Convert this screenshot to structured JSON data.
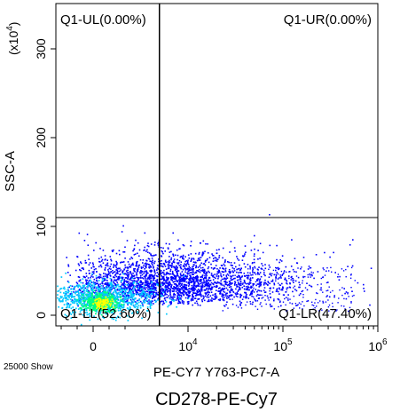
{
  "chart_data": {
    "type": "scatter",
    "title": "",
    "caption": "CD278-PE-Cy7",
    "xlabel": "PE-CY7 Y763-PC7-A",
    "ylabel": "SSC-A",
    "y_multiplier": "(x10",
    "y_multiplier_exp": "4",
    "y_multiplier_close": ")",
    "event_count_label": "25000 Show",
    "x_scale": "biexponential",
    "xlim": [
      -300,
      1000000
    ],
    "ylim": [
      -10,
      350
    ],
    "x_ticks": [
      {
        "value": 0,
        "base": "0",
        "exp": ""
      },
      {
        "value": 10000,
        "base": "10",
        "exp": "4"
      },
      {
        "value": 100000,
        "base": "10",
        "exp": "5"
      },
      {
        "value": 1000000,
        "base": "10",
        "exp": "6"
      }
    ],
    "y_ticks": [
      {
        "value": 0,
        "label": "0"
      },
      {
        "value": 100,
        "label": "100"
      },
      {
        "value": 200,
        "label": "200"
      },
      {
        "value": 300,
        "label": "300"
      }
    ],
    "gate": {
      "x": 2500,
      "y": 110
    },
    "quadrants": {
      "ul": "Q1-UL(0.00%)",
      "ur": "Q1-UR(0.00%)",
      "ll": "Q1-LL(52.60%)",
      "lr": "Q1-LR(47.40%)"
    },
    "colors": {
      "low": "#0000ff",
      "mid": "#00c8ff",
      "high": "#00ff80",
      "peak": "#ffff00",
      "line": "#000000"
    },
    "grid": false,
    "legend": "none"
  }
}
